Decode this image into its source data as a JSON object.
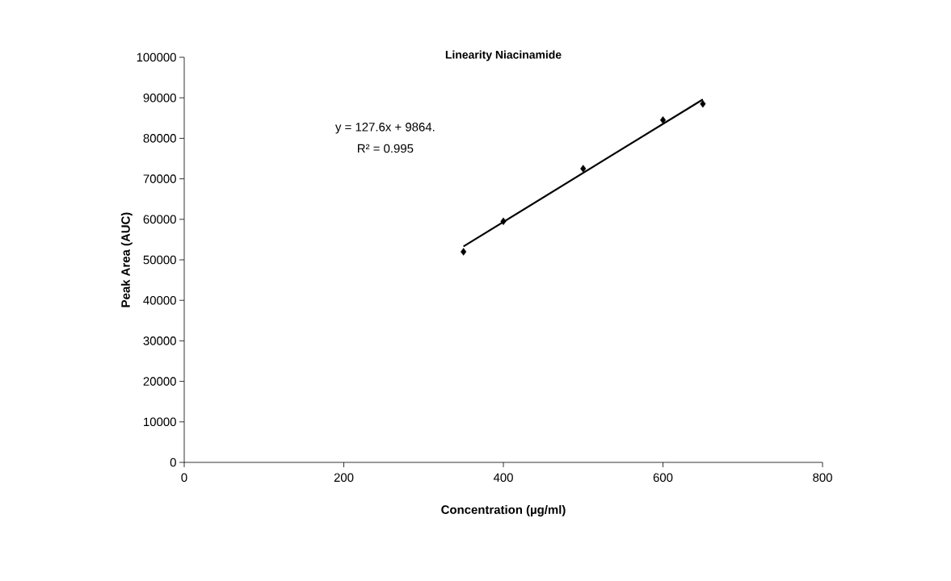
{
  "chart_data": {
    "type": "scatter",
    "title": "Linearity Niacinamide",
    "xlabel": "Concentration (µg/ml)",
    "ylabel": "Peak Area (AUC)",
    "x": [
      350,
      400,
      500,
      600,
      650
    ],
    "series": [
      {
        "color": "#000000",
        "values": [
          52000,
          59500,
          72500,
          84500,
          88500
        ],
        "marker": "diamond"
      },
      {
        "type": "line",
        "color": "#000000",
        "x": [
          350,
          650
        ],
        "values": [
          53300,
          89600
        ],
        "marker": "none"
      }
    ],
    "annotations": [
      "y =  127.6x + 9864.",
      "R² = 0.995"
    ],
    "xlim": [
      0,
      800
    ],
    "xticks": [
      0,
      200,
      400,
      600,
      800
    ],
    "ylim": [
      0,
      100000
    ],
    "yticks": [
      0,
      10000,
      20000,
      30000,
      40000,
      50000,
      60000,
      70000,
      80000,
      90000,
      100000
    ],
    "grid": false
  }
}
